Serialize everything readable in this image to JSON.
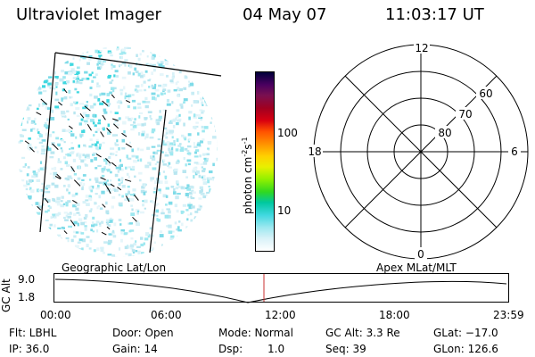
{
  "header": {
    "title": "Ultraviolet Imager",
    "date": "04 May 07",
    "time": "11:03:17 UT"
  },
  "colorbar": {
    "label": "photon cm",
    "label_exp1": "-2",
    "label_mid": "s",
    "label_exp2": "-1",
    "ticks": [
      "100",
      "10"
    ],
    "colors": [
      "#00003a",
      "#4a0060",
      "#7a1050",
      "#a00020",
      "#d80010",
      "#ff5000",
      "#ff9000",
      "#ffd000",
      "#e8f000",
      "#90f000",
      "#30d820",
      "#00c8a0",
      "#40d8e0",
      "#9ee8f0",
      "#d8f2f8",
      "#ffffff"
    ]
  },
  "polar": {
    "mlt_labels": {
      "top": "12",
      "left": "18",
      "right": "6",
      "bottom": "0"
    },
    "lat_labels": [
      "60",
      "70",
      "80"
    ]
  },
  "timeline": {
    "y_axis_label": "GC Alt",
    "y_ticks": [
      "9.0",
      "1.8"
    ],
    "left_caption": "Geographic Lat/Lon",
    "right_caption": "Apex MLat/MLT",
    "x_ticks": [
      "00:00",
      "06:00",
      "12:00",
      "18:00",
      "23:59"
    ],
    "marker_color": "#c83030"
  },
  "status": {
    "flt": "Flt: LBHL",
    "ip": "IP: 36.0",
    "door": "Door: Open",
    "gain": "Gain: 14",
    "mode": "Mode: Normal",
    "dsp_label": "Dsp:",
    "dsp_value": "1.0",
    "gcalt": "GC Alt: 3.3 Re",
    "seq": "Seq: 39",
    "glat": "GLat: −17.0",
    "glon": "GLon: 126.6"
  }
}
